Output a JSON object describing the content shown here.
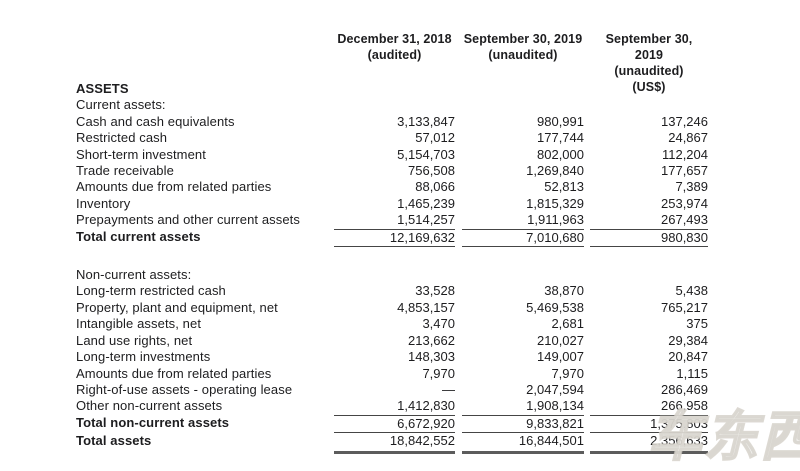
{
  "colors": {
    "text": "#1d1d1f",
    "line": "#454545",
    "line_thick": "#5c5c5c",
    "background": "#ffffff"
  },
  "watermark_text": "车东西",
  "table": {
    "columns": [
      {
        "line1": "December 31, 2018",
        "line2": "(audited)",
        "line3": ""
      },
      {
        "line1": "September 30, 2019",
        "line2": "(unaudited)",
        "line3": ""
      },
      {
        "line1": "September 30, 2019",
        "line2": "(unaudited)",
        "line3": "(US$)"
      }
    ],
    "rows": [
      {
        "type": "section-bold",
        "label": "ASSETS",
        "v1": "",
        "v2": "",
        "v3": ""
      },
      {
        "type": "section",
        "label": "Current assets:",
        "v1": "",
        "v2": "",
        "v3": ""
      },
      {
        "type": "item",
        "label": "Cash and cash equivalents",
        "v1": "3,133,847",
        "v2": "980,991",
        "v3": "137,246"
      },
      {
        "type": "item",
        "label": "Restricted cash",
        "v1": "57,012",
        "v2": "177,744",
        "v3": "24,867"
      },
      {
        "type": "item",
        "label": "Short-term investment",
        "v1": "5,154,703",
        "v2": "802,000",
        "v3": "112,204"
      },
      {
        "type": "item",
        "label": "Trade receivable",
        "v1": "756,508",
        "v2": "1,269,840",
        "v3": "177,657"
      },
      {
        "type": "item",
        "label": "Amounts due from related parties",
        "v1": "88,066",
        "v2": "52,813",
        "v3": "7,389"
      },
      {
        "type": "item",
        "label": "Inventory",
        "v1": "1,465,239",
        "v2": "1,815,329",
        "v3": "253,974"
      },
      {
        "type": "item",
        "label": "Prepayments and other current assets",
        "v1": "1,514,257",
        "v2": "1,911,963",
        "v3": "267,493"
      },
      {
        "type": "total",
        "label": "Total current assets",
        "v1": "12,169,632",
        "v2": "7,010,680",
        "v3": "980,830"
      },
      {
        "type": "spacer",
        "label": "",
        "v1": "",
        "v2": "",
        "v3": ""
      },
      {
        "type": "section",
        "label": "Non-current assets:",
        "v1": "",
        "v2": "",
        "v3": ""
      },
      {
        "type": "item",
        "label": "Long-term restricted cash",
        "v1": "33,528",
        "v2": "38,870",
        "v3": "5,438"
      },
      {
        "type": "item",
        "label": "Property, plant and equipment, net",
        "v1": "4,853,157",
        "v2": "5,469,538",
        "v3": "765,217"
      },
      {
        "type": "item",
        "label": "Intangible assets, net",
        "v1": "3,470",
        "v2": "2,681",
        "v3": "375"
      },
      {
        "type": "item",
        "label": "Land use rights, net",
        "v1": "213,662",
        "v2": "210,027",
        "v3": "29,384"
      },
      {
        "type": "item",
        "label": "Long-term investments",
        "v1": "148,303",
        "v2": "149,007",
        "v3": "20,847"
      },
      {
        "type": "item",
        "label": "Amounts due from related parties",
        "v1": "7,970",
        "v2": "7,970",
        "v3": "1,115"
      },
      {
        "type": "item",
        "label": "Right-of-use assets - operating lease",
        "v1": "—",
        "v2": "2,047,594",
        "v3": "286,469"
      },
      {
        "type": "item",
        "label": "Other non-current assets",
        "v1": "1,412,830",
        "v2": "1,908,134",
        "v3": "266,958"
      },
      {
        "type": "total",
        "label": "Total non-current assets",
        "v1": "6,672,920",
        "v2": "9,833,821",
        "v3": "1,375,803"
      },
      {
        "type": "grand-total",
        "label": "Total assets",
        "v1": "18,842,552",
        "v2": "16,844,501",
        "v3": "2,356,633"
      }
    ]
  }
}
